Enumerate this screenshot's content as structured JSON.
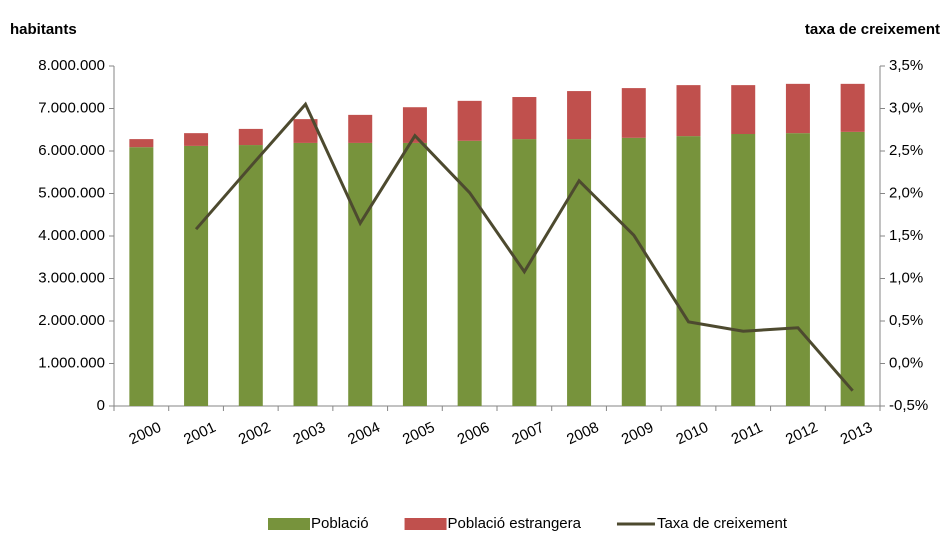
{
  "chart_data": {
    "type": "bar_line",
    "y_label": "habitants",
    "y2_label": "taxa de creixement",
    "categories": [
      "2000",
      "2001",
      "2002",
      "2003",
      "2004",
      "2005",
      "2006",
      "2007",
      "2008",
      "2009",
      "2010",
      "2011",
      "2012",
      "2013"
    ],
    "series": [
      {
        "name": "Població",
        "type": "bar",
        "color": "#77933c",
        "values": [
          6090000,
          6120000,
          6140000,
          6190000,
          6190000,
          6190000,
          6240000,
          6280000,
          6280000,
          6310000,
          6350000,
          6400000,
          6420000,
          6450000
        ]
      },
      {
        "name": "Població estrangera",
        "type": "bar",
        "color": "#c0504d",
        "values": [
          190000,
          300000,
          380000,
          560000,
          660000,
          840000,
          940000,
          990000,
          1130000,
          1170000,
          1200000,
          1150000,
          1160000,
          1130000
        ]
      },
      {
        "name": "Taxa de creixement",
        "type": "line",
        "axis": "y2",
        "color": "#4d4a2f",
        "values": [
          null,
          1.58,
          2.32,
          3.05,
          1.65,
          2.68,
          2.01,
          1.08,
          2.15,
          1.51,
          0.49,
          0.38,
          0.42,
          -0.32
        ]
      }
    ],
    "stacked": true,
    "ylim": [
      0,
      8000000
    ],
    "yticks": [
      0,
      {
        "value": 1000000,
        "label": "1.000.000"
      },
      {
        "value": 2000000,
        "label": "2.000.000"
      },
      {
        "value": 3000000,
        "label": "3.000.000"
      },
      {
        "value": 4000000,
        "label": "4.000.000"
      },
      {
        "value": 5000000,
        "label": "5.000.000"
      },
      {
        "value": 6000000,
        "label": "6.000.000"
      },
      {
        "value": 7000000,
        "label": "7.000.000"
      },
      {
        "value": 8000000,
        "label": "8.000.000"
      }
    ],
    "y2lim": [
      -0.5,
      3.5
    ],
    "y2ticks": [
      {
        "value": -0.5,
        "label": "-0,5%"
      },
      {
        "value": 0,
        "label": "0,0%"
      },
      {
        "value": 0.5,
        "label": "0,5%"
      },
      {
        "value": 1,
        "label": "1,0%"
      },
      {
        "value": 1.5,
        "label": "1,5%"
      },
      {
        "value": 2,
        "label": "2,0%"
      },
      {
        "value": 2.5,
        "label": "2,5%"
      },
      {
        "value": 3,
        "label": "3,0%"
      },
      {
        "value": 3.5,
        "label": "3,5%"
      }
    ],
    "grid": false,
    "legend": "bottom"
  }
}
